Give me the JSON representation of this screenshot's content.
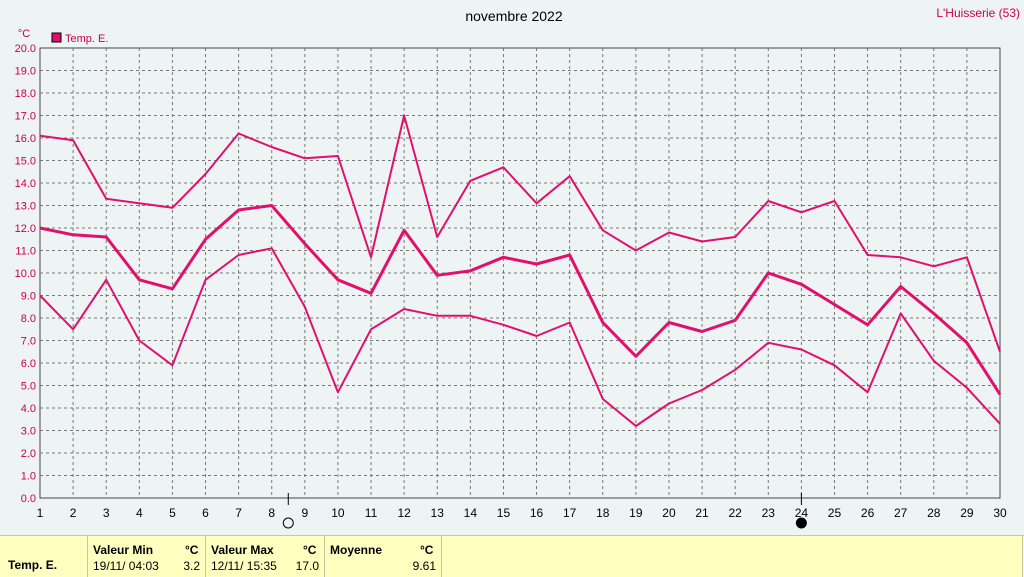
{
  "station": "L'Huisserie (53)",
  "chart_data": {
    "type": "line",
    "title": "novembre 2022",
    "ylabel": "°C",
    "ylim": [
      0,
      20
    ],
    "ytick_step": 1,
    "x": [
      1,
      2,
      3,
      4,
      5,
      6,
      7,
      8,
      9,
      10,
      11,
      12,
      13,
      14,
      15,
      16,
      17,
      18,
      19,
      20,
      21,
      22,
      23,
      24,
      25,
      26,
      27,
      28,
      29,
      30
    ],
    "legend": "Temp. E.",
    "legend_position": "top-left",
    "grid": true,
    "color": "#e0106c",
    "series": [
      {
        "values": [
          16.1,
          15.9,
          13.3,
          13.1,
          12.9,
          14.4,
          16.2,
          15.6,
          15.1,
          15.2,
          10.7,
          17.0,
          11.6,
          14.1,
          14.7,
          13.1,
          14.3,
          11.9,
          11.0,
          11.8,
          11.4,
          11.6,
          13.2,
          12.7,
          13.2,
          10.8,
          10.7,
          10.3,
          10.7,
          6.5
        ]
      },
      {
        "values": [
          12.0,
          11.7,
          11.6,
          9.7,
          9.3,
          11.5,
          12.8,
          13.0,
          11.3,
          9.7,
          9.1,
          11.9,
          9.9,
          10.1,
          10.7,
          10.4,
          10.8,
          7.8,
          6.3,
          7.8,
          7.4,
          7.9,
          10.0,
          9.5,
          8.6,
          7.7,
          9.4,
          8.2,
          6.9,
          4.6
        ]
      },
      {
        "values": [
          9.0,
          7.5,
          9.7,
          7.0,
          5.9,
          9.7,
          10.8,
          11.1,
          8.5,
          4.7,
          7.5,
          8.4,
          8.1,
          8.1,
          7.7,
          7.2,
          7.8,
          4.4,
          3.2,
          4.2,
          4.8,
          5.7,
          6.9,
          6.6,
          5.9,
          4.7,
          8.2,
          6.1,
          4.9,
          3.3
        ]
      }
    ],
    "moon_phases": [
      {
        "x": 8.5,
        "phase": "full-moon"
      },
      {
        "x": 24,
        "phase": "new-moon"
      }
    ]
  },
  "footer": {
    "series_label": "Temp. E.",
    "min": {
      "label": "Valeur Min",
      "unit": "°C",
      "date": "19/11/  04:03",
      "value": "3.2"
    },
    "max": {
      "label": "Valeur Max",
      "unit": "°C",
      "date": "12/11/  15:35",
      "value": "17.0"
    },
    "mean": {
      "label": "Moyenne",
      "unit": "°C",
      "value": "9.61"
    }
  }
}
